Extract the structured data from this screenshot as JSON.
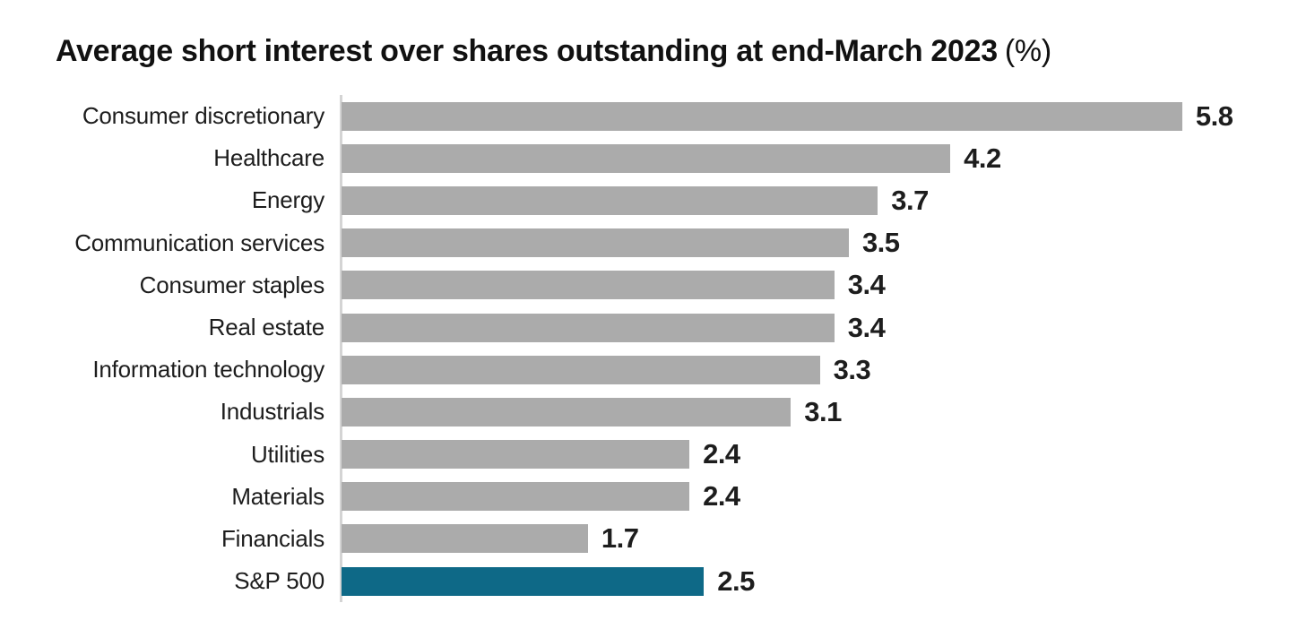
{
  "chart_data": {
    "type": "bar",
    "orientation": "horizontal",
    "title": "Average short interest over shares outstanding at end-March 2023 (%)",
    "title_main": "Average short interest over shares outstanding at end-March 2023",
    "title_suffix": "(%)",
    "categories": [
      "Consumer discretionary",
      "Healthcare",
      "Energy",
      "Communication services",
      "Consumer staples",
      "Real estate",
      "Information technology",
      "Industrials",
      "Utilities",
      "Materials",
      "Financials",
      "S&P 500"
    ],
    "values": [
      5.8,
      4.2,
      3.7,
      3.5,
      3.4,
      3.4,
      3.3,
      3.1,
      2.4,
      2.4,
      1.7,
      2.5
    ],
    "value_labels": [
      "5.8",
      "4.2",
      "3.7",
      "3.5",
      "3.4",
      "3.4",
      "3.3",
      "3.1",
      "2.4",
      "2.4",
      "1.7",
      "2.5"
    ],
    "highlight_category": "S&P 500",
    "xlabel": "",
    "ylabel": "",
    "xlim": [
      0,
      6.2
    ],
    "grid": false,
    "legend": "none",
    "value_labels_position": "end-of-bar",
    "colors": {
      "bar": "#ababab",
      "highlight": "#0e6987",
      "axis_line": "#d4d4d4",
      "text": "#1d1d1d",
      "title_text": "#111111",
      "background": "#ffffff"
    }
  }
}
